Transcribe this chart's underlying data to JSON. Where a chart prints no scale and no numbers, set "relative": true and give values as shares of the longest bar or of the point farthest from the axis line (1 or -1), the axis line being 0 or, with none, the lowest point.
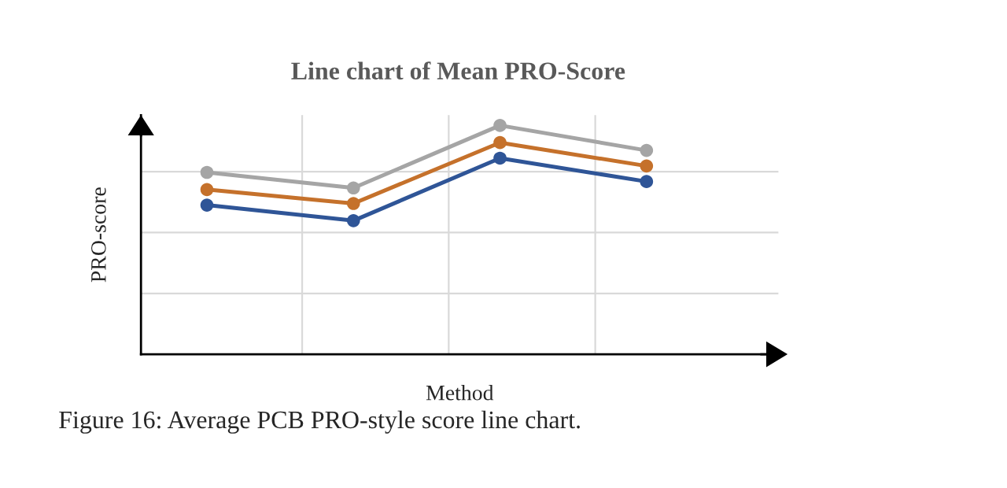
{
  "chart_data": {
    "type": "line",
    "title": "Line chart of Mean PRO-Score",
    "xlabel": "Method",
    "ylabel": "PRO-score",
    "annotations": [
      "Figure 16: Average PCB PRO-style score line chart."
    ],
    "categories": [
      null,
      null,
      null,
      null
    ],
    "relative": true,
    "grid": true,
    "marker": "circle",
    "line_style": "solid",
    "series": [
      {
        "color": "#2f5597",
        "values": [
          0.652,
          0.584,
          0.857,
          0.755
        ]
      },
      {
        "color": "#c5712b",
        "values": [
          0.72,
          0.659,
          0.925,
          0.823
        ]
      },
      {
        "color": "#a5a5a5",
        "values": [
          0.795,
          0.727,
          1.0,
          0.891
        ]
      }
    ]
  }
}
